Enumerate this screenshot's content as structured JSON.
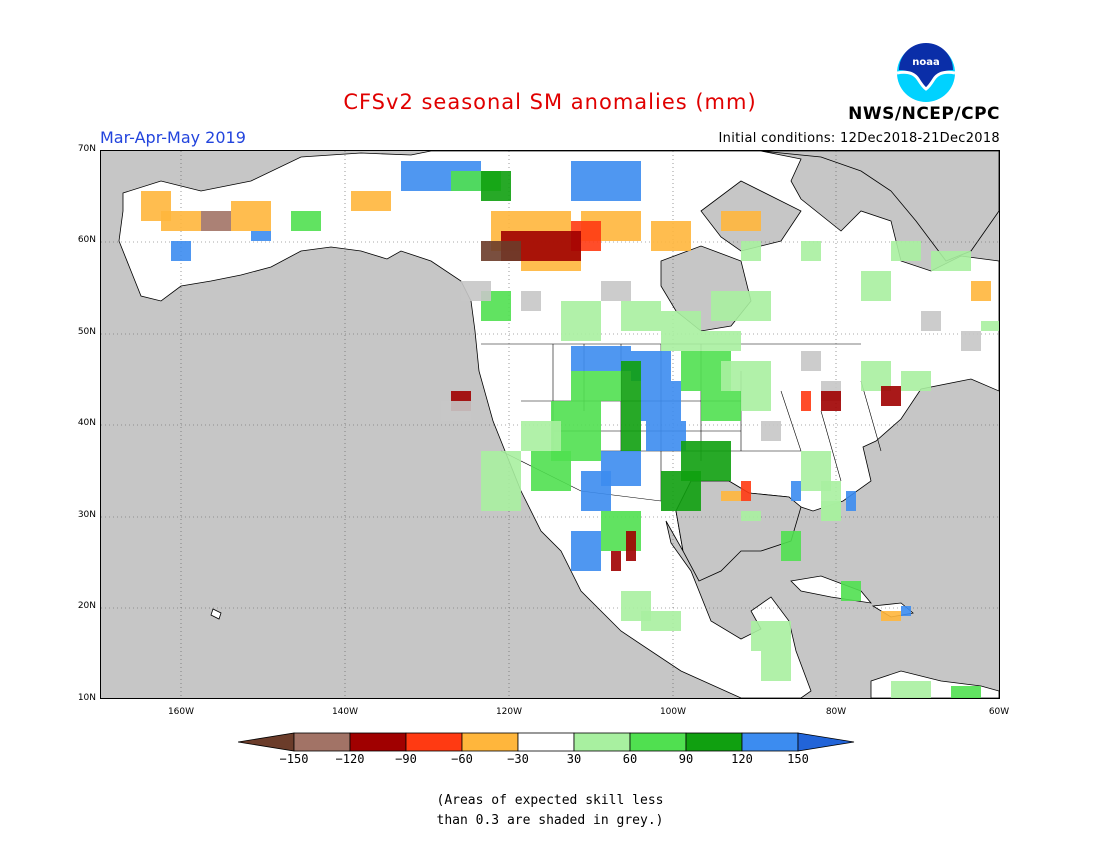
{
  "title": "CFSv2 seasonal SM anomalies (mm)",
  "period": "Mar-Apr-May 2019",
  "initial_conditions": "Initial conditions: 12Dec2018-21Dec2018",
  "agency": "NWS/NCEP/CPC",
  "logo": {
    "text": "noaa",
    "icon": "noaa-logo-icon"
  },
  "map": {
    "lat_labels": [
      "70N",
      "60N",
      "50N",
      "40N",
      "30N",
      "20N",
      "10N"
    ],
    "lon_labels": [
      "160W",
      "140W",
      "120W",
      "100W",
      "80W",
      "60W"
    ],
    "extent": {
      "lon": [
        -172,
        -60
      ],
      "lat": [
        10,
        70
      ]
    },
    "grid": "dotted",
    "masked_area_color": "#c6c6c6",
    "land_color": "#ffffff"
  },
  "legend": {
    "labels": [
      "-150",
      "-120",
      "-90",
      "-60",
      "-30",
      "30",
      "60",
      "90",
      "120",
      "150"
    ],
    "colors": [
      "#6b3c2a",
      "#a27366",
      "#a00000",
      "#ff3a12",
      "#ffb63c",
      "#ffffff",
      "#a8f0a0",
      "#50e050",
      "#10a010",
      "#3c8cf0",
      "#2264d8"
    ]
  },
  "note_lines": [
    "(Areas of expected skill less",
    "than 0.3 are shaded in grey.)"
  ]
}
